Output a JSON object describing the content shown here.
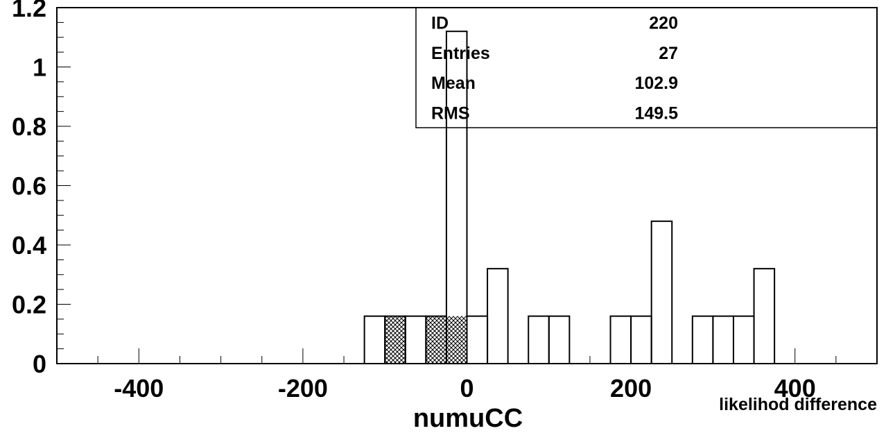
{
  "chart_data": {
    "type": "histogram",
    "xlabel": "likelihod difference",
    "title_below": "numuCC",
    "xlim": [
      -500,
      500
    ],
    "ylim": [
      0,
      1.2
    ],
    "x_ticks": [
      -400,
      -200,
      0,
      200,
      400
    ],
    "x_tick_labels": [
      "-400",
      "-200",
      "0",
      "200",
      "400"
    ],
    "y_ticks": [
      0,
      0.2,
      0.4,
      0.6,
      0.8,
      1,
      1.2
    ],
    "y_tick_labels": [
      "0",
      "0.2",
      "0.4",
      "0.6",
      "0.8",
      "1",
      "1.2"
    ],
    "grid": false,
    "series": [
      {
        "style": "outline",
        "bin_width": 25,
        "bins": [
          {
            "x0": -125,
            "x1": -100,
            "value": 0.16
          },
          {
            "x0": -100,
            "x1": -75,
            "value": 0.16
          },
          {
            "x0": -75,
            "x1": -50,
            "value": 0.16
          },
          {
            "x0": -50,
            "x1": -25,
            "value": 0.16
          },
          {
            "x0": -25,
            "x1": 0,
            "value": 1.12
          },
          {
            "x0": 0,
            "x1": 25,
            "value": 0.16
          },
          {
            "x0": 25,
            "x1": 50,
            "value": 0.32
          },
          {
            "x0": 75,
            "x1": 100,
            "value": 0.16
          },
          {
            "x0": 100,
            "x1": 125,
            "value": 0.16
          },
          {
            "x0": 175,
            "x1": 200,
            "value": 0.16
          },
          {
            "x0": 200,
            "x1": 225,
            "value": 0.16
          },
          {
            "x0": 225,
            "x1": 250,
            "value": 0.48
          },
          {
            "x0": 275,
            "x1": 300,
            "value": 0.16
          },
          {
            "x0": 300,
            "x1": 325,
            "value": 0.16
          },
          {
            "x0": 325,
            "x1": 350,
            "value": 0.16
          },
          {
            "x0": 350,
            "x1": 375,
            "value": 0.32
          }
        ]
      },
      {
        "style": "crosshatch",
        "bins": [
          {
            "x0": -100,
            "x1": -75,
            "value": 0.16
          },
          {
            "x0": -50,
            "x1": -25,
            "value": 0.16
          },
          {
            "x0": -25,
            "x1": 0,
            "value": 0.16
          }
        ]
      }
    ],
    "stats_box": {
      "position": "top-right",
      "rows": [
        {
          "label": "ID",
          "value": "220"
        },
        {
          "label": "Entries",
          "value": "27"
        },
        {
          "label": "Mean",
          "value": "102.9"
        },
        {
          "label": "RMS",
          "value": "149.5"
        }
      ]
    }
  }
}
